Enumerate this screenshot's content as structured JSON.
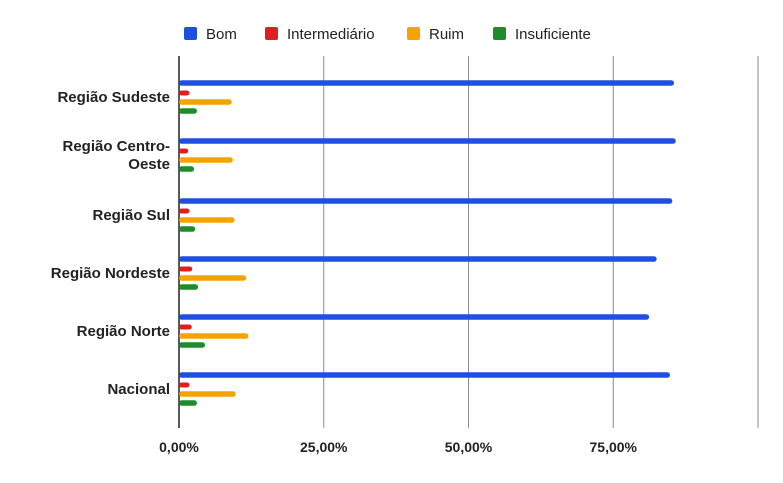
{
  "chart_data": {
    "type": "bar",
    "orientation": "horizontal",
    "categories": [
      "Região Sudeste",
      "Região Centro-Oeste",
      "Região Sul",
      "Região Nordeste",
      "Região Norte",
      "Nacional"
    ],
    "category_lines": [
      [
        "Região Sudeste"
      ],
      [
        "Região Centro-",
        "Oeste"
      ],
      [
        "Região Sul"
      ],
      [
        "Região Nordeste"
      ],
      [
        "Região Norte"
      ],
      [
        "Nacional"
      ]
    ],
    "series": [
      {
        "name": "Bom",
        "color": "#1f4fe0",
        "values": [
          85.5,
          85.8,
          85.2,
          82.5,
          81.2,
          84.8
        ]
      },
      {
        "name": "Intermediário",
        "color": "#e01e1e",
        "values": [
          1.8,
          1.6,
          1.8,
          2.3,
          2.2,
          1.8
        ]
      },
      {
        "name": "Ruim",
        "color": "#f5a300",
        "values": [
          9.1,
          9.3,
          9.6,
          11.6,
          12.0,
          9.8
        ]
      },
      {
        "name": "Insuficiente",
        "color": "#1e8c2a",
        "values": [
          3.1,
          2.6,
          2.8,
          3.3,
          4.5,
          3.1
        ]
      }
    ],
    "x_ticks": [
      "0,00%",
      "25,00%",
      "50,00%",
      "75,00%"
    ],
    "xlim": [
      0,
      100
    ],
    "grid": true,
    "legend_position": "top"
  }
}
